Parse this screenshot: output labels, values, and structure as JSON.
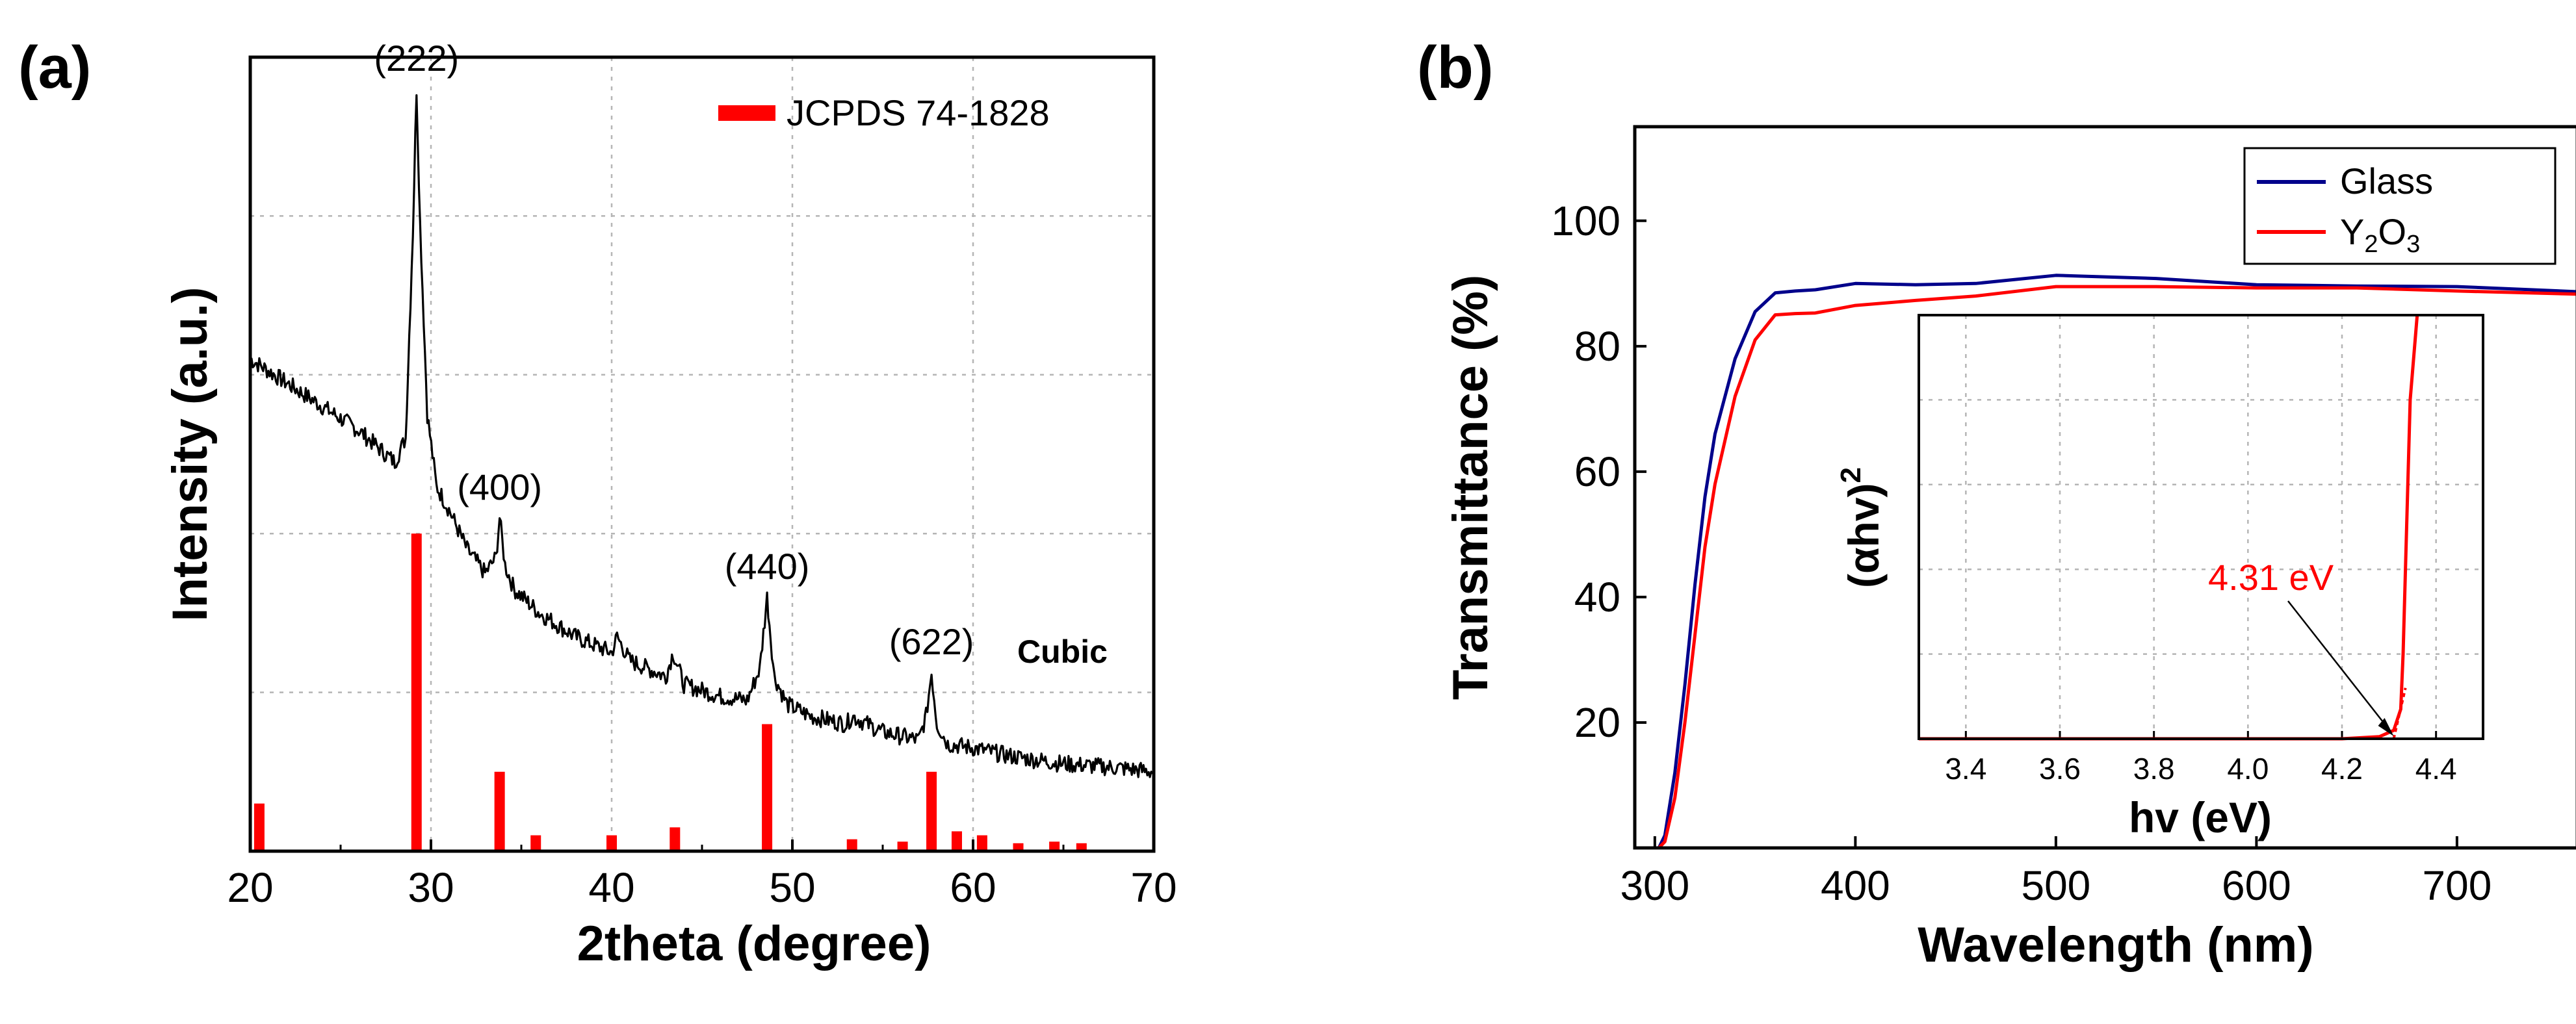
{
  "chart_data": [
    {
      "panel": "(a)",
      "type": "line",
      "xlabel": "2theta (degree)",
      "ylabel": "Intensity (a.u.)",
      "xlim": [
        20,
        70
      ],
      "x_ticks": [
        20,
        30,
        40,
        50,
        60,
        70
      ],
      "y_ticks_shown": false,
      "grid": true,
      "legend": {
        "label": "JCPDS 74-1828",
        "color": "#ff0000",
        "placement": "top-right"
      },
      "phase_label": "Cubic",
      "peak_labels": [
        {
          "text": "(222)",
          "x": 29.2
        },
        {
          "text": "(400)",
          "x": 33.8
        },
        {
          "text": "(440)",
          "x": 48.6
        },
        {
          "text": "(622)",
          "x": 57.7
        }
      ],
      "series": [
        {
          "name": "XRD pattern",
          "color": "#000000",
          "x": [
            20,
            22,
            24,
            26,
            27,
            28,
            28.6,
            29.0,
            29.2,
            29.4,
            29.8,
            30.3,
            31,
            32,
            33,
            33.6,
            33.8,
            34.1,
            34.6,
            36,
            38,
            40,
            40.3,
            41,
            43,
            43.4,
            44,
            46,
            47.5,
            48.2,
            48.6,
            49.0,
            49.7,
            51,
            53,
            53.3,
            55,
            57,
            57.4,
            57.7,
            58.0,
            58.6,
            60,
            62,
            65,
            68,
            70
          ],
          "y": [
            0.62,
            0.59,
            0.56,
            0.53,
            0.51,
            0.49,
            0.52,
            0.78,
            0.96,
            0.79,
            0.55,
            0.46,
            0.43,
            0.38,
            0.35,
            0.37,
            0.42,
            0.36,
            0.33,
            0.3,
            0.27,
            0.25,
            0.27,
            0.24,
            0.22,
            0.25,
            0.21,
            0.195,
            0.19,
            0.23,
            0.32,
            0.22,
            0.185,
            0.17,
            0.16,
            0.17,
            0.15,
            0.14,
            0.17,
            0.225,
            0.16,
            0.135,
            0.13,
            0.12,
            0.11,
            0.105,
            0.1
          ]
        }
      ],
      "reference_bars": {
        "name": "JCPDS 74-1828",
        "x": [
          20.5,
          29.2,
          33.8,
          35.8,
          40.0,
          43.5,
          48.6,
          53.3,
          56.1,
          57.7,
          59.1,
          60.5,
          62.5,
          64.5,
          66.0
        ],
        "heights": [
          0.06,
          0.4,
          0.1,
          0.02,
          0.02,
          0.03,
          0.16,
          0.015,
          0.012,
          0.1,
          0.025,
          0.02,
          0.01,
          0.012,
          0.01
        ]
      }
    },
    {
      "panel": "(b)",
      "type": "line",
      "xlabel": "Wavelength (nm)",
      "ylabel": "Transmittance (%)",
      "xlim": [
        290,
        760
      ],
      "ylim": [
        0,
        115
      ],
      "x_ticks": [
        300,
        400,
        500,
        600,
        700
      ],
      "y_ticks": [
        20,
        40,
        60,
        80,
        100
      ],
      "legend_placement": "top-right",
      "series": [
        {
          "name": "Glass",
          "color": "#00008b",
          "x": [
            302,
            305,
            310,
            315,
            320,
            325,
            330,
            340,
            350,
            360,
            370,
            380,
            400,
            430,
            460,
            500,
            510,
            550,
            600,
            650,
            700,
            760
          ],
          "y": [
            0,
            2,
            12,
            26,
            42,
            56,
            66,
            78,
            85.5,
            88.5,
            88.8,
            89,
            90,
            89.8,
            90,
            91.3,
            91.2,
            90.8,
            89.8,
            89.6,
            89.5,
            88.7
          ]
        },
        {
          "name": "Y2O3",
          "color": "#ff0000",
          "x": [
            302,
            305,
            310,
            315,
            320,
            325,
            330,
            340,
            350,
            360,
            370,
            380,
            400,
            430,
            460,
            500,
            550,
            600,
            650,
            700,
            760
          ],
          "y": [
            0,
            1,
            8,
            20,
            34,
            48,
            58,
            72,
            81,
            85,
            85.2,
            85.3,
            86.5,
            87.3,
            88,
            89.5,
            89.5,
            89.3,
            89.3,
            88.8,
            88.3
          ]
        }
      ],
      "legend_labels": [
        {
          "text": "Glass",
          "color": "#00008b"
        },
        {
          "text": "Y",
          "sub1": "2",
          "mid": "O",
          "sub2": "3",
          "color": "#ff0000"
        }
      ],
      "inset": {
        "type": "line",
        "xlabel": "hv (eV)",
        "ylabel_main": "(αhv)",
        "ylabel_sup": "2",
        "xlim": [
          3.3,
          4.5
        ],
        "x_ticks": [
          3.4,
          3.6,
          3.8,
          4.0,
          4.2,
          4.4
        ],
        "grid": true,
        "annotation": "4.31 eV",
        "band_gap_ev": 4.31,
        "series": {
          "name": "Y2O3",
          "color": "#ff0000",
          "x": [
            3.3,
            4.2,
            4.28,
            4.31,
            4.325,
            4.33,
            4.345,
            4.36
          ],
          "y": [
            0,
            0,
            0.005,
            0.02,
            0.07,
            0.2,
            0.8,
            1.0
          ]
        },
        "tangent": {
          "x": [
            4.31,
            4.335
          ],
          "y": [
            0,
            0.12
          ]
        }
      }
    }
  ]
}
